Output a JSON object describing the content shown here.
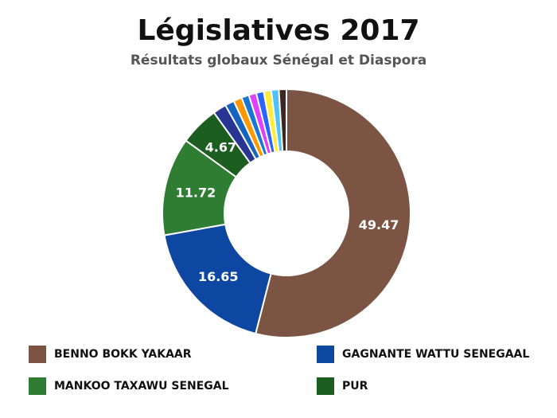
{
  "chart_data": {
    "type": "pie",
    "title": "Législatives 2017",
    "subtitle": "Résultats globaux Sénégal et Diaspora",
    "slices": [
      {
        "name": "BENNO BOKK YAKAAR",
        "value": 49.47,
        "label": "49.47",
        "color": "#7b5444"
      },
      {
        "name": "GAGNANTE WATTU SENEGAAL",
        "value": 16.65,
        "label": "16.65",
        "color": "#0d47a1"
      },
      {
        "name": "MANKOO TAXAWU SENEGAL",
        "value": 11.72,
        "label": "11.72",
        "color": "#2e7d32"
      },
      {
        "name": "PUR",
        "value": 4.67,
        "label": "4.67",
        "color": "#1b5e20"
      },
      {
        "value": 1.6,
        "color": "#283593"
      },
      {
        "value": 1.1,
        "color": "#1565c0"
      },
      {
        "value": 1.0,
        "color": "#ff9800"
      },
      {
        "value": 0.9,
        "color": "#1976d2"
      },
      {
        "value": 0.9,
        "color": "#e040fb"
      },
      {
        "value": 0.9,
        "color": "#2962ff"
      },
      {
        "value": 0.9,
        "color": "#ffeb3b"
      },
      {
        "value": 0.9,
        "color": "#4fc3f7"
      },
      {
        "value": 0.9,
        "color": "#3e2723"
      }
    ],
    "legend": [
      {
        "label": "BENNO BOKK YAKAAR",
        "color": "#7b5444"
      },
      {
        "label": "GAGNANTE WATTU SENEGAAL",
        "color": "#0d47a1"
      },
      {
        "label": "MANKOO TAXAWU SENEGAL",
        "color": "#2e7d32"
      },
      {
        "label": "PUR",
        "color": "#1b5e20"
      }
    ],
    "legend_position": "bottom"
  }
}
